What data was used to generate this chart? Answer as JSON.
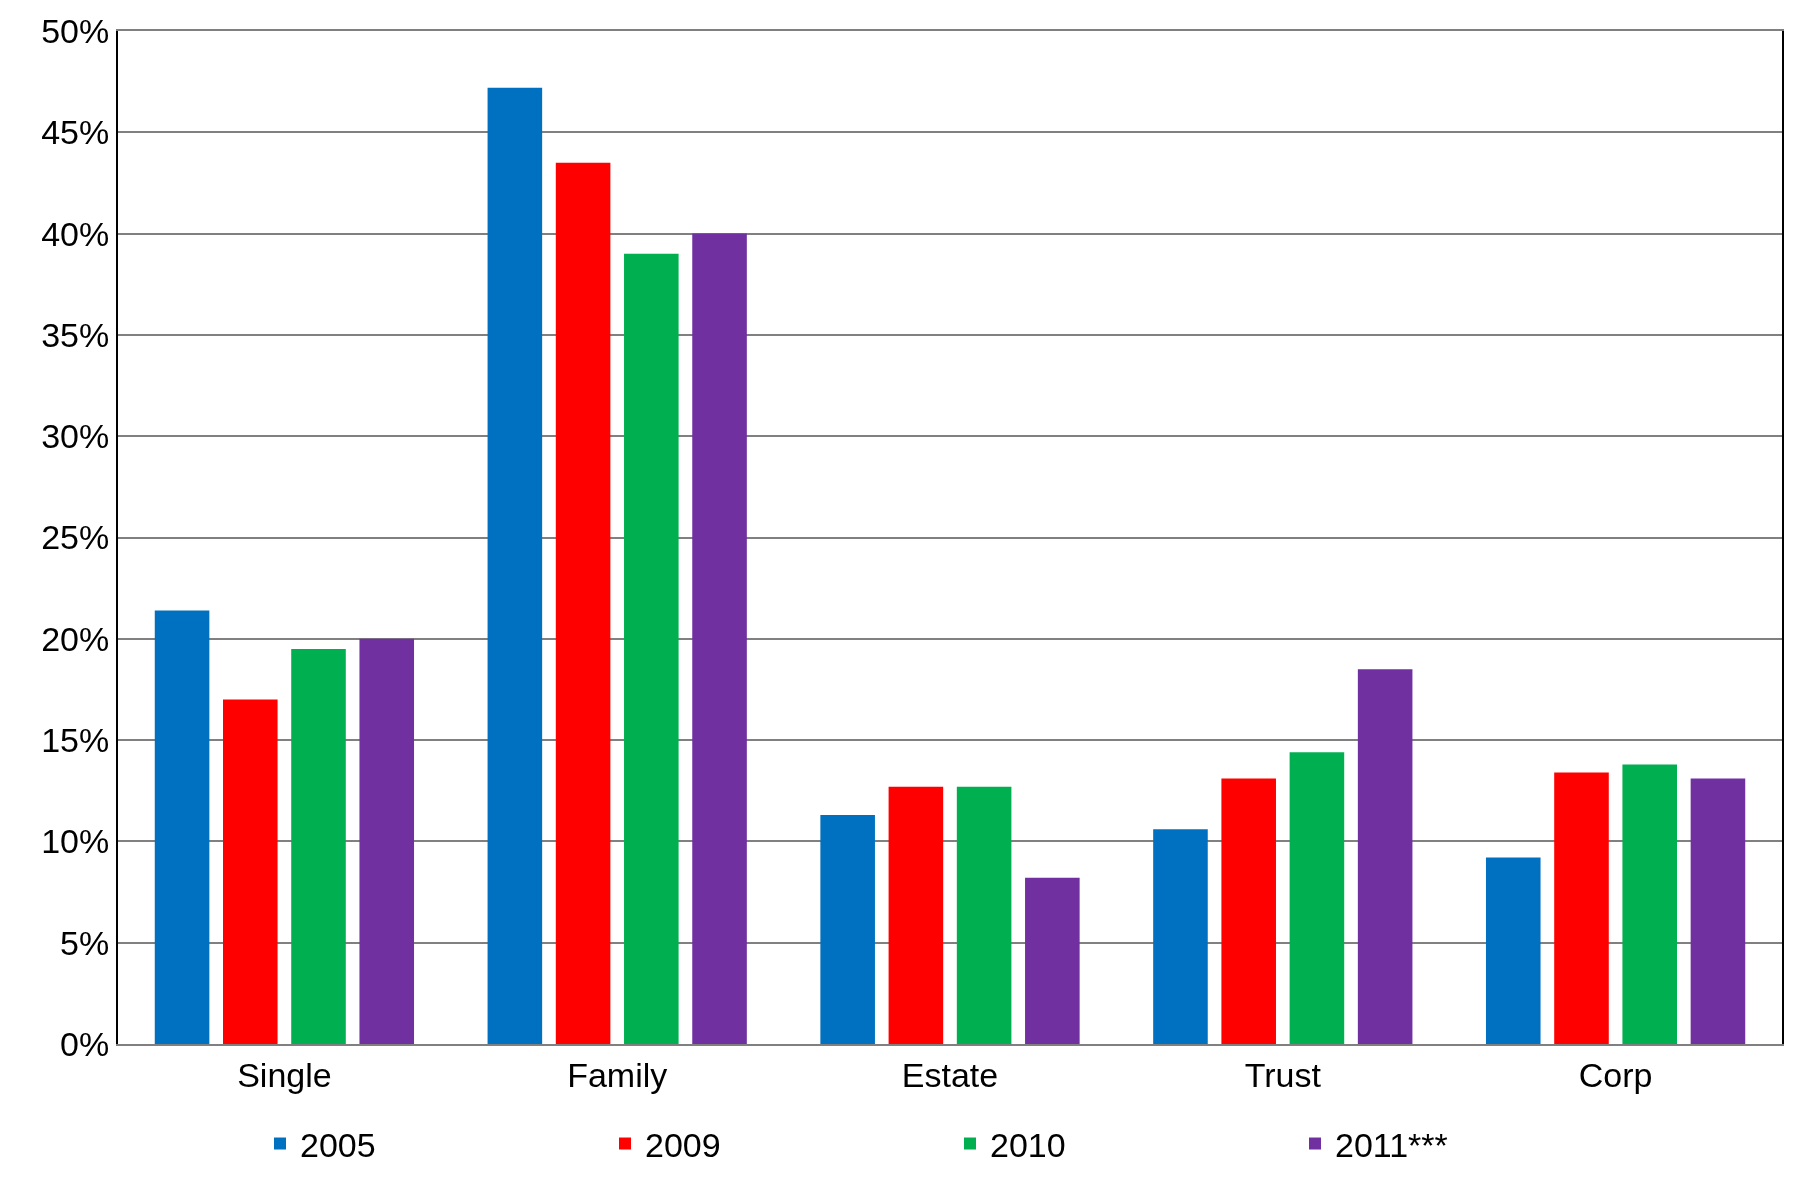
{
  "chart_data": {
    "type": "bar",
    "categories": [
      "Single",
      "Family",
      "Estate",
      "Trust",
      "Corp"
    ],
    "series": [
      {
        "name": "2005",
        "color": "#0070c0",
        "values": [
          21.4,
          47.2,
          11.3,
          10.6,
          9.2
        ]
      },
      {
        "name": "2009",
        "color": "#ff0000",
        "values": [
          17.0,
          43.5,
          12.7,
          13.1,
          13.4
        ]
      },
      {
        "name": "2010",
        "color": "#00b050",
        "values": [
          19.5,
          39.0,
          12.7,
          14.4,
          13.8
        ]
      },
      {
        "name": "2011***",
        "color": "#7030a0",
        "values": [
          20.0,
          40.0,
          8.2,
          18.5,
          13.1
        ]
      }
    ],
    "ylim": [
      0,
      50
    ],
    "yticks": [
      {
        "value": 0,
        "label": "0%"
      },
      {
        "value": 5,
        "label": "5%"
      },
      {
        "value": 10,
        "label": "10%"
      },
      {
        "value": 15,
        "label": "15%"
      },
      {
        "value": 20,
        "label": "20%"
      },
      {
        "value": 25,
        "label": "25%"
      },
      {
        "value": 30,
        "label": "30%"
      },
      {
        "value": 35,
        "label": "35%"
      },
      {
        "value": 40,
        "label": "40%"
      },
      {
        "value": 45,
        "label": "45%"
      },
      {
        "value": 50,
        "label": "50%"
      }
    ],
    "grid": "y",
    "legend": "bottom"
  }
}
